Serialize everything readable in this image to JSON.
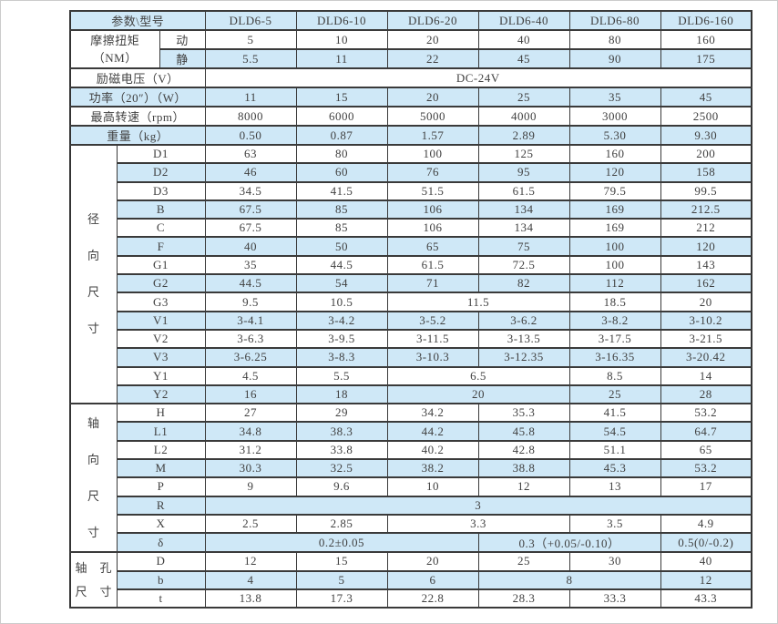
{
  "page": {
    "background": "#ffffff",
    "row_blue": "#cfe8f7",
    "row_white": "#ffffff",
    "border_color": "#3a3a3a",
    "text_color": "#414141"
  },
  "table": {
    "rows": [
      {
        "cells": [
          {
            "t": "参数\\型号",
            "cs": 3,
            "name": "param-model-header-cell"
          },
          {
            "t": "DLD6-5",
            "name": "model-header-cell"
          },
          {
            "t": "DLD6-10",
            "name": "model-header-cell"
          },
          {
            "t": "DLD6-20",
            "name": "model-header-cell"
          },
          {
            "t": "DLD6-40",
            "name": "model-header-cell"
          },
          {
            "t": "DLD6-80",
            "name": "model-header-cell"
          },
          {
            "t": "DLD6-160",
            "name": "model-header-cell"
          }
        ]
      },
      {
        "cells": [
          {
            "t": "摩擦扭矩\n（NM）",
            "cs": 2,
            "rs": 2,
            "name": "friction-torque-label-cell"
          },
          {
            "t": "动",
            "name": "dynamic-label-cell"
          },
          {
            "t": "5"
          },
          {
            "t": "10"
          },
          {
            "t": "20"
          },
          {
            "t": "40"
          },
          {
            "t": "80"
          },
          {
            "t": "160"
          }
        ]
      },
      {
        "cells": [
          {
            "t": "静",
            "name": "static-label-cell"
          },
          {
            "t": "5.5"
          },
          {
            "t": "11"
          },
          {
            "t": "22"
          },
          {
            "t": "45"
          },
          {
            "t": "90"
          },
          {
            "t": "175"
          }
        ]
      },
      {
        "cells": [
          {
            "t": "励磁电压（V）",
            "cs": 3,
            "name": "excitation-voltage-label-cell"
          },
          {
            "t": "DC-24V",
            "cs": 6,
            "name": "voltage-value-cell"
          }
        ]
      },
      {
        "cells": [
          {
            "t": "功率（20″）（W）",
            "cs": 3,
            "name": "power-label-cell"
          },
          {
            "t": "11"
          },
          {
            "t": "15"
          },
          {
            "t": "20"
          },
          {
            "t": "25"
          },
          {
            "t": "35"
          },
          {
            "t": "45"
          }
        ]
      },
      {
        "cells": [
          {
            "t": "最高转速（rpm）",
            "cs": 3,
            "name": "max-speed-label-cell"
          },
          {
            "t": "8000"
          },
          {
            "t": "6000"
          },
          {
            "t": "5000"
          },
          {
            "t": "4000"
          },
          {
            "t": "3000"
          },
          {
            "t": "2500"
          }
        ]
      },
      {
        "cells": [
          {
            "t": "重量（kg）",
            "cs": 3,
            "name": "weight-label-cell"
          },
          {
            "t": "0.50"
          },
          {
            "t": "0.87"
          },
          {
            "t": "1.57"
          },
          {
            "t": "2.89"
          },
          {
            "t": "5.30"
          },
          {
            "t": "9.30"
          }
        ]
      },
      {
        "cells": [
          {
            "t": "径向尺寸",
            "rs": 14,
            "v": true,
            "name": "radial-dimensions-label-cell"
          },
          {
            "t": "D1",
            "cs": 2,
            "name": "dim-name-cell"
          },
          {
            "t": "63"
          },
          {
            "t": "80"
          },
          {
            "t": "100"
          },
          {
            "t": "125"
          },
          {
            "t": "160"
          },
          {
            "t": "200"
          }
        ]
      },
      {
        "cells": [
          {
            "t": "D2",
            "cs": 2,
            "name": "dim-name-cell"
          },
          {
            "t": "46"
          },
          {
            "t": "60"
          },
          {
            "t": "76"
          },
          {
            "t": "95"
          },
          {
            "t": "120"
          },
          {
            "t": "158"
          }
        ]
      },
      {
        "cells": [
          {
            "t": "D3",
            "cs": 2,
            "name": "dim-name-cell"
          },
          {
            "t": "34.5"
          },
          {
            "t": "41.5"
          },
          {
            "t": "51.5"
          },
          {
            "t": "61.5"
          },
          {
            "t": "79.5"
          },
          {
            "t": "99.5"
          }
        ]
      },
      {
        "cells": [
          {
            "t": "B",
            "cs": 2,
            "name": "dim-name-cell"
          },
          {
            "t": "67.5"
          },
          {
            "t": "85"
          },
          {
            "t": "106"
          },
          {
            "t": "134"
          },
          {
            "t": "169"
          },
          {
            "t": "212.5"
          }
        ]
      },
      {
        "cells": [
          {
            "t": "C",
            "cs": 2,
            "name": "dim-name-cell"
          },
          {
            "t": "67.5"
          },
          {
            "t": "85"
          },
          {
            "t": "106"
          },
          {
            "t": "134"
          },
          {
            "t": "169"
          },
          {
            "t": "212"
          }
        ]
      },
      {
        "cells": [
          {
            "t": "F",
            "cs": 2,
            "name": "dim-name-cell"
          },
          {
            "t": "40"
          },
          {
            "t": "50"
          },
          {
            "t": "65"
          },
          {
            "t": "75"
          },
          {
            "t": "100"
          },
          {
            "t": "120"
          }
        ]
      },
      {
        "cells": [
          {
            "t": "G1",
            "cs": 2,
            "name": "dim-name-cell"
          },
          {
            "t": "35"
          },
          {
            "t": "44.5"
          },
          {
            "t": "61.5"
          },
          {
            "t": "72.5"
          },
          {
            "t": "100"
          },
          {
            "t": "143"
          }
        ]
      },
      {
        "cells": [
          {
            "t": "G2",
            "cs": 2,
            "name": "dim-name-cell"
          },
          {
            "t": "44.5"
          },
          {
            "t": "54"
          },
          {
            "t": "71"
          },
          {
            "t": "82"
          },
          {
            "t": "112"
          },
          {
            "t": "162"
          }
        ]
      },
      {
        "cells": [
          {
            "t": "G3",
            "cs": 2,
            "name": "dim-name-cell"
          },
          {
            "t": "9.5"
          },
          {
            "t": "10.5"
          },
          {
            "t": "11.5",
            "cs": 2
          },
          {
            "t": "18.5"
          },
          {
            "t": "20"
          }
        ]
      },
      {
        "cells": [
          {
            "t": "V1",
            "cs": 2,
            "name": "dim-name-cell"
          },
          {
            "t": "3-4.1"
          },
          {
            "t": "3-4.2"
          },
          {
            "t": "3-5.2"
          },
          {
            "t": "3-6.2"
          },
          {
            "t": "3-8.2"
          },
          {
            "t": "3-10.2"
          }
        ]
      },
      {
        "cells": [
          {
            "t": "V2",
            "cs": 2,
            "name": "dim-name-cell"
          },
          {
            "t": "3-6.3"
          },
          {
            "t": "3-9.5"
          },
          {
            "t": "3-11.5"
          },
          {
            "t": "3-13.5"
          },
          {
            "t": "3-17.5"
          },
          {
            "t": "3-21.5"
          }
        ]
      },
      {
        "cells": [
          {
            "t": "V3",
            "cs": 2,
            "name": "dim-name-cell"
          },
          {
            "t": "3-6.25"
          },
          {
            "t": "3-8.3"
          },
          {
            "t": "3-10.3"
          },
          {
            "t": "3-12.35"
          },
          {
            "t": "3-16.35"
          },
          {
            "t": "3-20.42"
          }
        ]
      },
      {
        "cells": [
          {
            "t": "Y1",
            "cs": 2,
            "name": "dim-name-cell"
          },
          {
            "t": "4.5"
          },
          {
            "t": "5.5"
          },
          {
            "t": "6.5",
            "cs": 2
          },
          {
            "t": "8.5"
          },
          {
            "t": "14"
          }
        ]
      },
      {
        "cells": [
          {
            "t": "Y2",
            "cs": 2,
            "name": "dim-name-cell"
          },
          {
            "t": "16"
          },
          {
            "t": "18"
          },
          {
            "t": "20",
            "cs": 2
          },
          {
            "t": "25"
          },
          {
            "t": "28"
          }
        ]
      },
      {
        "cells": [
          {
            "t": "轴向尺寸",
            "rs": 8,
            "v": true,
            "name": "axial-dimensions-label-cell"
          },
          {
            "t": "H",
            "cs": 2,
            "name": "dim-name-cell"
          },
          {
            "t": "27"
          },
          {
            "t": "29"
          },
          {
            "t": "34.2"
          },
          {
            "t": "35.3"
          },
          {
            "t": "41.5"
          },
          {
            "t": "53.2"
          }
        ]
      },
      {
        "cells": [
          {
            "t": "L1",
            "cs": 2,
            "name": "dim-name-cell"
          },
          {
            "t": "34.8"
          },
          {
            "t": "38.3"
          },
          {
            "t": "44.2"
          },
          {
            "t": "45.8"
          },
          {
            "t": "54.5"
          },
          {
            "t": "64.7"
          }
        ]
      },
      {
        "cells": [
          {
            "t": "L2",
            "cs": 2,
            "name": "dim-name-cell"
          },
          {
            "t": "31.2"
          },
          {
            "t": "33.8"
          },
          {
            "t": "40.2"
          },
          {
            "t": "42.8"
          },
          {
            "t": "51.1"
          },
          {
            "t": "65"
          }
        ]
      },
      {
        "cells": [
          {
            "t": "M",
            "cs": 2,
            "name": "dim-name-cell"
          },
          {
            "t": "30.3"
          },
          {
            "t": "32.5"
          },
          {
            "t": "38.2"
          },
          {
            "t": "38.8"
          },
          {
            "t": "45.3"
          },
          {
            "t": "53.2"
          }
        ]
      },
      {
        "cells": [
          {
            "t": "P",
            "cs": 2,
            "name": "dim-name-cell"
          },
          {
            "t": "9"
          },
          {
            "t": "9.6"
          },
          {
            "t": "10"
          },
          {
            "t": "12"
          },
          {
            "t": "13"
          },
          {
            "t": "17"
          }
        ]
      },
      {
        "cells": [
          {
            "t": "R",
            "cs": 2,
            "name": "dim-name-cell"
          },
          {
            "t": "3",
            "cs": 6
          }
        ]
      },
      {
        "cells": [
          {
            "t": "X",
            "cs": 2,
            "name": "dim-name-cell"
          },
          {
            "t": "2.5"
          },
          {
            "t": "2.85"
          },
          {
            "t": "3.3",
            "cs": 2
          },
          {
            "t": "3.5"
          },
          {
            "t": "4.9"
          }
        ]
      },
      {
        "cells": [
          {
            "t": "δ",
            "cs": 2,
            "name": "dim-name-cell"
          },
          {
            "t": "0.2±0.05",
            "cs": 3
          },
          {
            "t": "0.3（+0.05/-0.10）",
            "cs": 2
          },
          {
            "t": "0.5(0/-0.2)"
          }
        ]
      },
      {
        "cells": [
          {
            "t": "轴　孔\n尺　寸",
            "rs": 3,
            "name": "shaft-hole-dimensions-label-cell"
          },
          {
            "t": "D",
            "cs": 2,
            "name": "dim-name-cell"
          },
          {
            "t": "12"
          },
          {
            "t": "15"
          },
          {
            "t": "20"
          },
          {
            "t": "25"
          },
          {
            "t": "30"
          },
          {
            "t": "40"
          }
        ]
      },
      {
        "cells": [
          {
            "t": "b",
            "cs": 2,
            "name": "dim-name-cell"
          },
          {
            "t": "4"
          },
          {
            "t": "5"
          },
          {
            "t": "6"
          },
          {
            "t": "8",
            "cs": 2
          },
          {
            "t": "12"
          }
        ]
      },
      {
        "cells": [
          {
            "t": "t",
            "cs": 2,
            "name": "dim-name-cell"
          },
          {
            "t": "13.8"
          },
          {
            "t": "17.3"
          },
          {
            "t": "22.8"
          },
          {
            "t": "28.3"
          },
          {
            "t": "33.3"
          },
          {
            "t": "43.3"
          }
        ]
      }
    ]
  }
}
